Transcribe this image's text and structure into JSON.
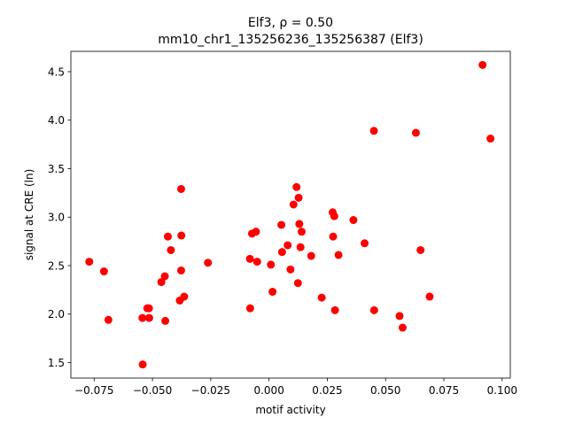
{
  "chart_data": {
    "type": "scatter",
    "title_line1": "Elf3, ρ = 0.50",
    "title_line2": "mm10_chr1_135256236_135256387 (Elf3)",
    "xlabel": "motif activity",
    "ylabel": "signal at CRE (ln)",
    "xlim": [
      -0.085,
      0.1035
    ],
    "ylim": [
      1.34,
      4.71
    ],
    "x_ticks": [
      -0.075,
      -0.05,
      -0.025,
      0.0,
      0.025,
      0.05,
      0.075,
      0.1
    ],
    "x_tick_labels": [
      "−0.075",
      "−0.050",
      "−0.025",
      "0.000",
      "0.025",
      "0.050",
      "0.075",
      "0.100"
    ],
    "y_ticks": [
      1.5,
      2.0,
      2.5,
      3.0,
      3.5,
      4.0,
      4.5
    ],
    "y_tick_labels": [
      "1.5",
      "2.0",
      "2.5",
      "3.0",
      "3.5",
      "4.0",
      "4.5"
    ],
    "marker_color": "#ff0000",
    "grid": false,
    "points": [
      {
        "x": -0.0771,
        "y": 2.54
      },
      {
        "x": -0.0708,
        "y": 2.44
      },
      {
        "x": -0.0689,
        "y": 1.94
      },
      {
        "x": -0.0543,
        "y": 1.96
      },
      {
        "x": -0.0542,
        "y": 1.48
      },
      {
        "x": -0.0522,
        "y": 2.06
      },
      {
        "x": -0.0515,
        "y": 2.06
      },
      {
        "x": -0.0514,
        "y": 1.96
      },
      {
        "x": -0.0462,
        "y": 2.33
      },
      {
        "x": -0.0447,
        "y": 2.39
      },
      {
        "x": -0.0445,
        "y": 1.93
      },
      {
        "x": -0.0434,
        "y": 2.8
      },
      {
        "x": -0.0421,
        "y": 2.66
      },
      {
        "x": -0.0383,
        "y": 2.14
      },
      {
        "x": -0.0377,
        "y": 2.45
      },
      {
        "x": -0.0377,
        "y": 3.29
      },
      {
        "x": -0.0376,
        "y": 2.81
      },
      {
        "x": -0.0364,
        "y": 2.18
      },
      {
        "x": -0.0262,
        "y": 2.53
      },
      {
        "x": -0.0082,
        "y": 2.57
      },
      {
        "x": -0.0081,
        "y": 2.06
      },
      {
        "x": -0.0073,
        "y": 2.83
      },
      {
        "x": -0.0056,
        "y": 2.85
      },
      {
        "x": -0.0051,
        "y": 2.54
      },
      {
        "x": 0.0008,
        "y": 2.51
      },
      {
        "x": 0.0015,
        "y": 2.23
      },
      {
        "x": 0.0053,
        "y": 2.92
      },
      {
        "x": 0.0056,
        "y": 2.64
      },
      {
        "x": 0.008,
        "y": 2.71
      },
      {
        "x": 0.0092,
        "y": 2.46
      },
      {
        "x": 0.0105,
        "y": 3.13
      },
      {
        "x": 0.0118,
        "y": 3.31
      },
      {
        "x": 0.0124,
        "y": 2.32
      },
      {
        "x": 0.0127,
        "y": 3.2
      },
      {
        "x": 0.013,
        "y": 2.93
      },
      {
        "x": 0.0135,
        "y": 2.69
      },
      {
        "x": 0.014,
        "y": 2.85
      },
      {
        "x": 0.0181,
        "y": 2.6
      },
      {
        "x": 0.0226,
        "y": 2.17
      },
      {
        "x": 0.0273,
        "y": 3.05
      },
      {
        "x": 0.0275,
        "y": 2.8
      },
      {
        "x": 0.028,
        "y": 3.01
      },
      {
        "x": 0.0283,
        "y": 2.04
      },
      {
        "x": 0.0298,
        "y": 2.61
      },
      {
        "x": 0.0362,
        "y": 2.97
      },
      {
        "x": 0.041,
        "y": 2.73
      },
      {
        "x": 0.045,
        "y": 3.89
      },
      {
        "x": 0.0451,
        "y": 2.04
      },
      {
        "x": 0.056,
        "y": 1.98
      },
      {
        "x": 0.0573,
        "y": 1.86
      },
      {
        "x": 0.063,
        "y": 3.87
      },
      {
        "x": 0.065,
        "y": 2.66
      },
      {
        "x": 0.0689,
        "y": 2.18
      },
      {
        "x": 0.0916,
        "y": 4.57
      },
      {
        "x": 0.095,
        "y": 3.81
      }
    ]
  }
}
